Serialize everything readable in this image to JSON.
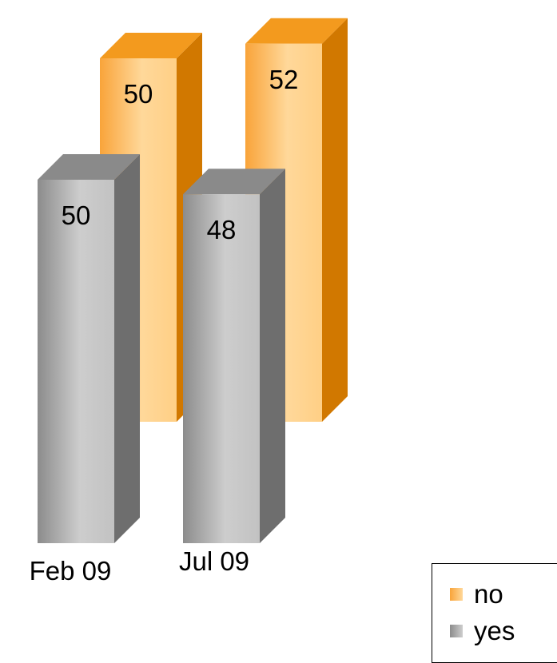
{
  "chart_data": {
    "type": "bar",
    "categories": [
      "Feb 09",
      "Jul 09"
    ],
    "series": [
      {
        "name": "no",
        "values": [
          50,
          52
        ],
        "color": "#F7A23A"
      },
      {
        "name": "yes",
        "values": [
          50,
          48
        ],
        "color": "#A6A6A6"
      }
    ],
    "data_labels": true,
    "legend": "bottom-right",
    "grid": false,
    "style": "3d-columns"
  }
}
